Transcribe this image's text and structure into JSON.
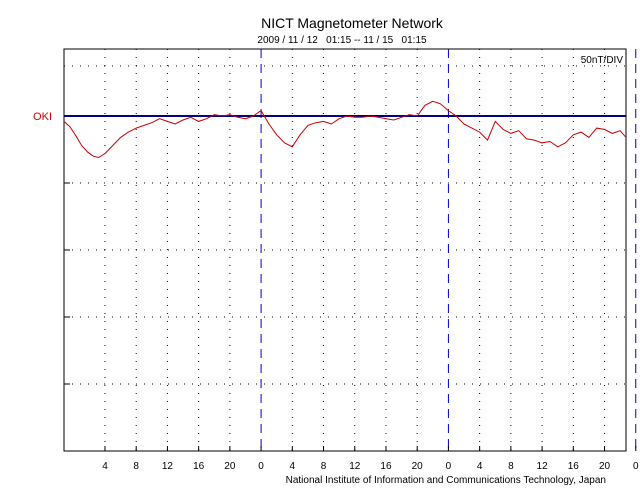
{
  "chart_data": {
    "type": "line",
    "title": "NICT Magnetometer Network",
    "subtitle": "2009 / 11 / 12   01:15 -- 11 / 15   01:15",
    "scale_label": "50nT/DIV",
    "footer": "National Institute of Information and Communications Technology, Japan",
    "x_range_hours": [
      -1.25,
      70.75
    ],
    "x_tick_labels": [
      {
        "h": 4,
        "label": "4"
      },
      {
        "h": 8,
        "label": "8"
      },
      {
        "h": 12,
        "label": "12"
      },
      {
        "h": 16,
        "label": "16"
      },
      {
        "h": 20,
        "label": "20"
      },
      {
        "h": 24,
        "label": "0"
      },
      {
        "h": 28,
        "label": "4"
      },
      {
        "h": 32,
        "label": "8"
      },
      {
        "h": 36,
        "label": "12"
      },
      {
        "h": 40,
        "label": "16"
      },
      {
        "h": 44,
        "label": "20"
      },
      {
        "h": 48,
        "label": "0"
      },
      {
        "h": 52,
        "label": "4"
      },
      {
        "h": 56,
        "label": "8"
      },
      {
        "h": 60,
        "label": "12"
      },
      {
        "h": 64,
        "label": "16"
      },
      {
        "h": 68,
        "label": "20"
      },
      {
        "h": 72,
        "label": "0"
      }
    ],
    "day_boundaries_hours": [
      24,
      48,
      72
    ],
    "y_units_per_div": 50,
    "y_divisions": 5,
    "grid": true,
    "series": [
      {
        "name": "OKI",
        "color": "#cc0000",
        "baseline_color": "#000080",
        "x_hours": [
          -1.25,
          -0.5,
          0.3,
          1.0,
          1.8,
          2.5,
          3.2,
          4.0,
          5.0,
          6.0,
          7.0,
          8.0,
          9.0,
          10.0,
          11.0,
          12.0,
          13.0,
          14.0,
          15.0,
          16.0,
          17.0,
          18.0,
          19.0,
          20.0,
          21.0,
          22.0,
          23.0,
          24.0,
          25.0,
          26.0,
          27.0,
          28.0,
          29.0,
          30.0,
          31.0,
          32.0,
          33.0,
          34.0,
          35.0,
          36.0,
          37.0,
          38.0,
          39.0,
          40.0,
          41.0,
          42.0,
          43.0,
          44.0,
          45.0,
          46.0,
          47.0,
          48.0,
          49.0,
          50.0,
          51.0,
          52.0,
          53.0,
          54.0,
          55.0,
          56.0,
          57.0,
          58.0,
          59.0,
          60.0,
          61.0,
          62.0,
          63.0,
          64.0,
          65.0,
          66.0,
          67.0,
          68.0,
          69.0,
          70.0,
          70.75
        ],
        "y_nT": [
          -4,
          -8,
          -15,
          -22,
          -27,
          -30,
          -31,
          -28,
          -22,
          -16,
          -12,
          -9,
          -7,
          -5,
          -2,
          -4,
          -6,
          -3,
          -1,
          -4,
          -2,
          1,
          0,
          1,
          -1,
          -2,
          0,
          4,
          -6,
          -14,
          -20,
          -23,
          -14,
          -7,
          -5,
          -4,
          -6,
          -2,
          0,
          -1,
          -1,
          0,
          -1,
          -2,
          -3,
          -1,
          1,
          0,
          8,
          11,
          9,
          4,
          0,
          -6,
          -9,
          -12,
          -18,
          -4,
          -10,
          -13,
          -11,
          -17,
          -18,
          -20,
          -19,
          -23,
          -20,
          -14,
          -12,
          -16,
          -9,
          -10,
          -13,
          -11,
          -16
        ]
      }
    ]
  }
}
